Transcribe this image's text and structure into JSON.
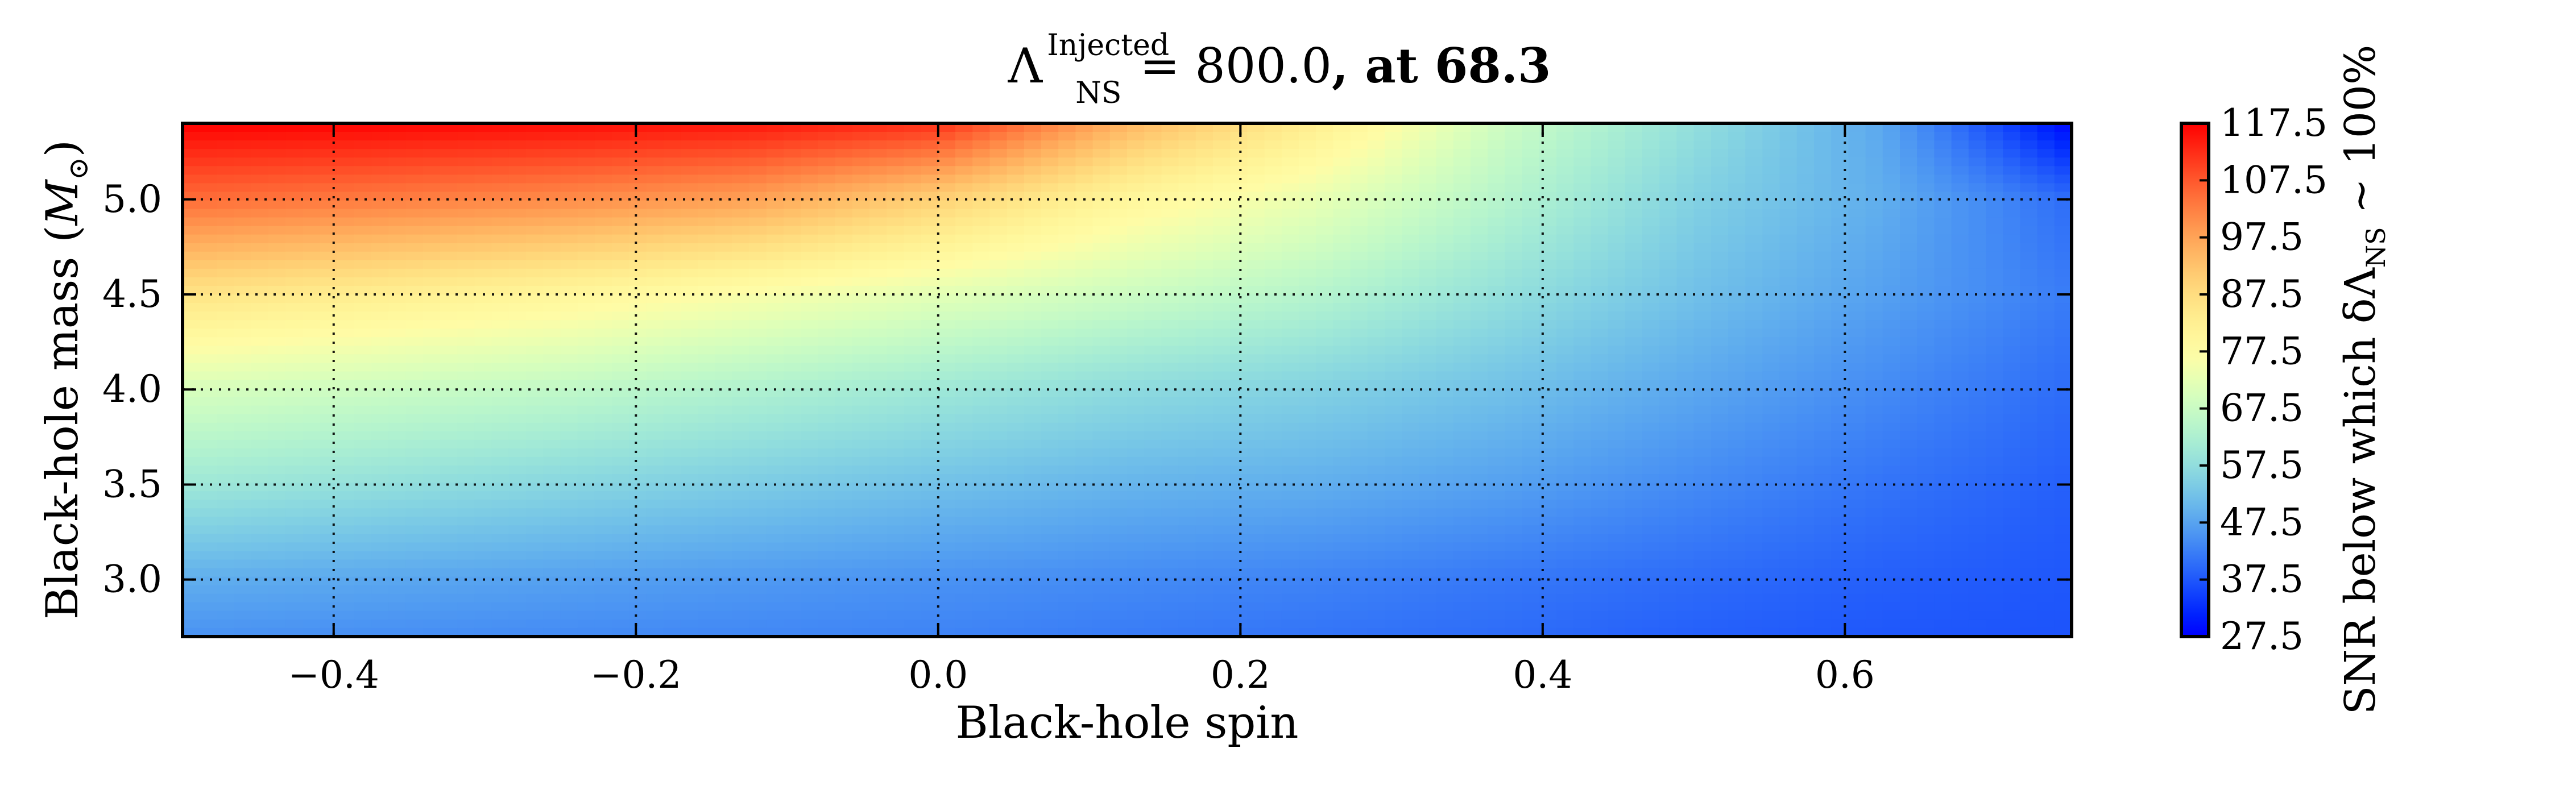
{
  "chart_data": {
    "type": "heatmap",
    "title": {
      "main_symbol": "Λ",
      "superscript": "Injected",
      "subscript": "NS",
      "equation": "= 800.0",
      "suffix": ", at 68.3"
    },
    "xlabel": "Black-hole spin",
    "ylabel": {
      "prefix": "Black-hole mass (",
      "symbol": "M",
      "subscript": "⊙",
      "suffix": ")"
    },
    "xlim": [
      -0.5,
      0.75
    ],
    "ylim": [
      2.7,
      5.4
    ],
    "x_ticks": [
      -0.4,
      -0.2,
      0.0,
      0.2,
      0.4,
      0.6
    ],
    "x_tick_labels": [
      "−0.4",
      "−0.2",
      "0.0",
      "0.2",
      "0.4",
      "0.6"
    ],
    "y_ticks": [
      3.0,
      3.5,
      4.0,
      4.5,
      5.0
    ],
    "y_tick_labels": [
      "3.0",
      "3.5",
      "4.0",
      "4.5",
      "5.0"
    ],
    "grid": true,
    "colormap": "rainbow",
    "color_range": [
      27.5,
      117.5
    ],
    "colorbar": {
      "label": {
        "prefix": "SNR below which δΛ",
        "subscript": "NS",
        "suffix": " ~ 100%"
      },
      "ticks": [
        117.5,
        107.5,
        97.5,
        87.5,
        77.5,
        67.5,
        57.5,
        47.5,
        37.5,
        27.5
      ],
      "tick_labels": [
        "117.5",
        "107.5",
        "97.5",
        "87.5",
        "77.5",
        "67.5",
        "57.5",
        "47.5",
        "37.5",
        "27.5"
      ]
    },
    "grid_data": {
      "x": [
        -0.5,
        -0.375,
        -0.25,
        -0.125,
        0.0,
        0.125,
        0.25,
        0.375,
        0.5,
        0.625,
        0.75
      ],
      "y": [
        2.7,
        3.0,
        3.5,
        4.0,
        4.5,
        5.0,
        5.4
      ],
      "z": [
        [
          45.0,
          44.5,
          44.0,
          43.5,
          43.0,
          42.0,
          41.0,
          40.0,
          38.5,
          37.5,
          37.0
        ],
        [
          49.0,
          48.0,
          47.0,
          46.0,
          45.0,
          44.0,
          43.0,
          41.5,
          40.0,
          38.5,
          37.5
        ],
        [
          60.0,
          58.0,
          56.0,
          54.0,
          52.0,
          50.0,
          49.0,
          47.0,
          44.0,
          41.0,
          38.5
        ],
        [
          70.0,
          68.0,
          66.0,
          63.0,
          60.0,
          57.0,
          55.0,
          52.0,
          48.0,
          44.0,
          40.0
        ],
        [
          86.0,
          83.0,
          80.0,
          76.0,
          72.0,
          68.0,
          64.0,
          58.0,
          52.0,
          47.0,
          42.0
        ],
        [
          105.0,
          103.0,
          101.0,
          98.0,
          90.0,
          80.0,
          73.0,
          64.0,
          55.0,
          49.0,
          40.0
        ],
        [
          117.5,
          117.0,
          116.0,
          115.0,
          112.0,
          95.0,
          83.0,
          68.0,
          58.0,
          48.0,
          28.0
        ]
      ]
    }
  }
}
